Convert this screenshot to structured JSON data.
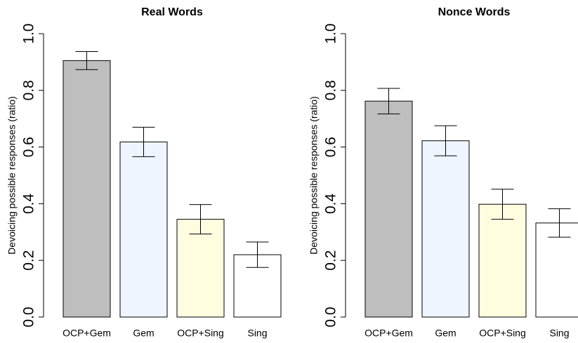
{
  "chart_data": [
    {
      "type": "bar",
      "title": "Real Words",
      "ylabel": "Devoicing possible responses (ratio)",
      "categories": [
        "OCP+Gem",
        "Gem",
        "OCP+Sing",
        "Sing"
      ],
      "values": [
        0.905,
        0.618,
        0.345,
        0.22
      ],
      "errors": [
        0.032,
        0.052,
        0.052,
        0.045
      ],
      "colors": [
        "#bebebe",
        "#eef5ff",
        "#fffde0",
        "#ffffff"
      ],
      "ylim": [
        0,
        1
      ],
      "yticks": [
        {
          "value": 0,
          "label": "0.0"
        },
        {
          "value": 0.2,
          "label": "0.2"
        },
        {
          "value": 0.4,
          "label": "0.4"
        },
        {
          "value": 0.6,
          "label": "0.6"
        },
        {
          "value": 0.8,
          "label": "0.8"
        },
        {
          "value": 1,
          "label": "1.0"
        }
      ]
    },
    {
      "type": "bar",
      "title": "Nonce Words",
      "ylabel": "Devoicing possible responses (ratio)",
      "categories": [
        "OCP+Gem",
        "Gem",
        "OCP+Sing",
        "Sing"
      ],
      "values": [
        0.762,
        0.622,
        0.398,
        0.332
      ],
      "errors": [
        0.045,
        0.053,
        0.053,
        0.05
      ],
      "colors": [
        "#bebebe",
        "#eef5ff",
        "#fffde0",
        "#ffffff"
      ],
      "ylim": [
        0,
        1
      ],
      "yticks": [
        {
          "value": 0,
          "label": "0.0"
        },
        {
          "value": 0.2,
          "label": "0.2"
        },
        {
          "value": 0.4,
          "label": "0.4"
        },
        {
          "value": 0.6,
          "label": "0.6"
        },
        {
          "value": 0.8,
          "label": "0.8"
        },
        {
          "value": 1,
          "label": "1.0"
        }
      ]
    }
  ]
}
